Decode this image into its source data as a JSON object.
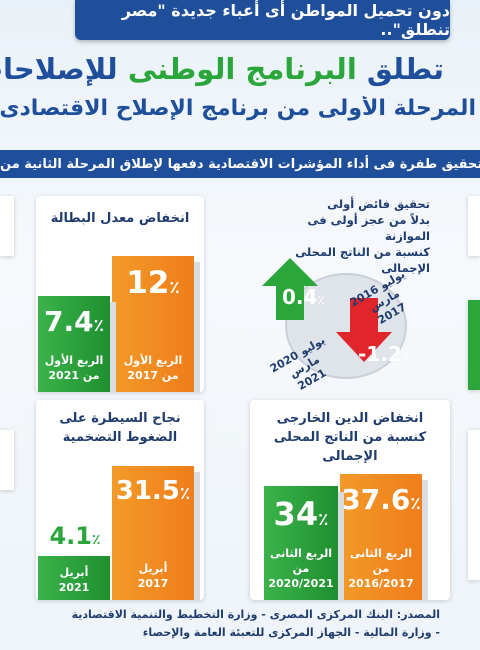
{
  "banner": "دون تحميل المواطن أى أعباء جديدة \"مصر تنطلق\"..",
  "title": {
    "part1": "تطلق",
    "highlight": "البرنامج الوطنى",
    "part2": "للإصلاحات الهيكلية",
    "line2": "المرحلة الأولى من برنامج الإصلاح الاقتصادى الهيكلى"
  },
  "subtitle": "تحقيق طفرة فى أداء المؤشرات الاقتصادية دفعها لإطلاق المرحلة الثانية من",
  "unemployment": {
    "title": "انخفاض معدل البطالة",
    "bars": [
      {
        "value": "12",
        "unit": "٪",
        "label_line1": "الربع الأول",
        "label_line2": "من 2017",
        "color": "#f07d1b"
      },
      {
        "value": "7.4",
        "unit": "٪",
        "label_line1": "الربع الأول",
        "label_line2": "من 2021",
        "color": "#2aa63a"
      }
    ]
  },
  "fiscal": {
    "title_line1": "تحقيق فائض أولى",
    "title_line2": "بدلاً من عجز أولى فى الموازنة",
    "title_line3": "كنسبة من الناتج المحلى الإجمالى",
    "up": {
      "value": "0.4",
      "unit": "٪",
      "date_line1": "يوليو 2020",
      "date_line2": "مارس 2021",
      "color": "#2aa63a"
    },
    "down": {
      "value": "-1.2",
      "unit": "٪",
      "date_line1": "يوليو 2016",
      "date_line2": "مارس 2017",
      "color": "#e0262b"
    }
  },
  "inflation": {
    "title_line1": "نجاح السيطرة على",
    "title_line2": "الضغوط التضخمية",
    "bars": [
      {
        "value": "31.5",
        "unit": "٪",
        "label_line1": "أبريل",
        "label_line2": "2017",
        "color": "#f07d1b"
      },
      {
        "value": "4.1",
        "unit": "٪",
        "label_line1": "أبريل",
        "label_line2": "2021",
        "color": "#2aa63a"
      }
    ]
  },
  "debt": {
    "title_line1": "انخفاض الدين الخارجى",
    "title_line2": "كنسبة من الناتج المحلى الإجمالى",
    "bars": [
      {
        "value": "37.6",
        "unit": "٪",
        "label_line1": "الربع الثانى من",
        "label_line2": "2016/2017",
        "color": "#f07d1b"
      },
      {
        "value": "34",
        "unit": "٪",
        "label_line1": "الربع الثانى من",
        "label_line2": "2020/2021",
        "color": "#2aa63a"
      }
    ]
  },
  "source": {
    "line1": "المصدر: البنك المركزى المصرى - وزارة التخطيط والتنمية الاقتصادية",
    "line2": "- وزارة المالية - الجهاز المركزى للتعبئة العامة والإحصاء"
  }
}
